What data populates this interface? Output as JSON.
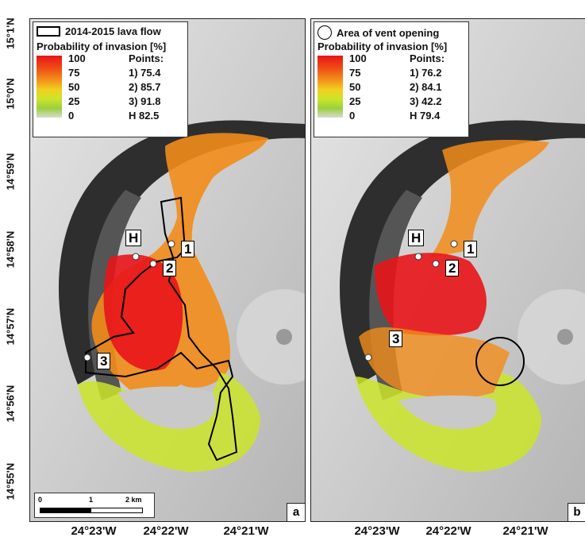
{
  "lat_labels": [
    "15°1'N",
    "15°0'N",
    "14°59'N",
    "14°58'N",
    "14°57'N",
    "14°56'N",
    "14°55'N"
  ],
  "lon_labels": [
    "24°23'W",
    "24°22'W",
    "24°21'W",
    "24°23'W",
    "24°22'W",
    "24°21'W"
  ],
  "panel_a": {
    "legend_symbol_label": "2014-2015 lava flow",
    "legend_title": "Probability of invasion [%]",
    "ramp_labels": [
      "100",
      "75",
      "50",
      "25",
      "0"
    ],
    "points_title": "Points:",
    "points": [
      "1) 75.4",
      "2) 85.7",
      "3) 91.8",
      "H 82.5"
    ],
    "markers": [
      "H",
      "1",
      "2",
      "3"
    ],
    "panel_letter": "a",
    "scale_labels": [
      "0",
      "1",
      "2 km"
    ]
  },
  "panel_b": {
    "legend_symbol_label": "Area of vent opening",
    "legend_title": "Probability of invasion [%]",
    "ramp_labels": [
      "100",
      "75",
      "50",
      "25",
      "0"
    ],
    "points_title": "Points:",
    "points": [
      "1) 76.2",
      "2) 84.1",
      "3) 42.2",
      "H 79.4"
    ],
    "markers": [
      "H",
      "1",
      "2",
      "3"
    ],
    "panel_letter": "b"
  },
  "colors": {
    "high": "#e8141a",
    "mid": "#f28c1a",
    "low": "#9bd03c",
    "terrain": "#c9c9c9",
    "ridge": "#2a2a2a"
  }
}
